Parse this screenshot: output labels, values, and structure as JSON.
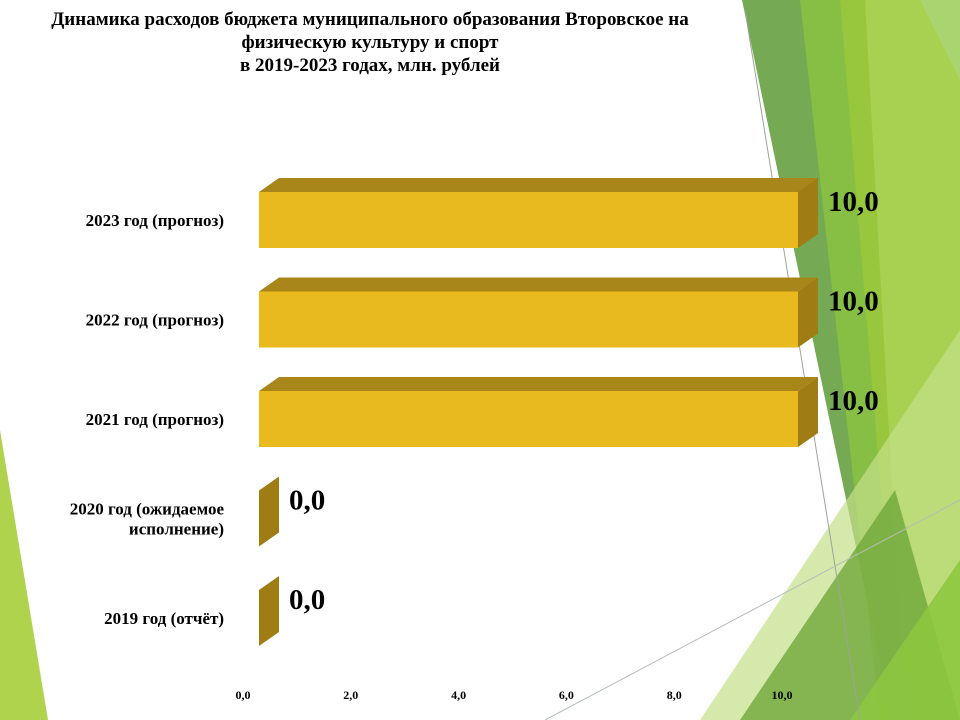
{
  "chart_data": {
    "type": "bar",
    "orientation": "horizontal",
    "title_lines": [
      "Динамика расходов бюджета муниципального  образования Второвское на",
      "физическую культуру и спорт",
      "в 2019-2023 годах, млн. рублей"
    ],
    "categories": [
      [
        "2019 год (отчёт)"
      ],
      [
        "2020 год (ожидаемое",
        "исполнение)"
      ],
      [
        "2021 год (прогноз)"
      ],
      [
        "2022 год (прогноз)"
      ],
      [
        "2023 год (прогноз)"
      ]
    ],
    "values": [
      0,
      0,
      10,
      10,
      10
    ],
    "value_labels": [
      "0,0",
      "0,0",
      "10,0",
      "10,0",
      "10,0"
    ],
    "xlim": [
      0,
      10
    ],
    "xticks": [
      {
        "value": 0,
        "label": "0,0"
      },
      {
        "value": 2,
        "label": "2,0"
      },
      {
        "value": 4,
        "label": "4,0"
      },
      {
        "value": 6,
        "label": "6,0"
      },
      {
        "value": 8,
        "label": "8,0"
      },
      {
        "value": 10,
        "label": "10,0"
      }
    ],
    "grid": false,
    "legend": "none",
    "bar_colors": {
      "front": "#E8BA1E",
      "top": "#A8861A",
      "side": "#A07C14"
    }
  },
  "background_colors": [
    "#8DC63F",
    "#6FA83A",
    "#C5DF8A",
    "#5E9A35",
    "#A6CE39"
  ]
}
